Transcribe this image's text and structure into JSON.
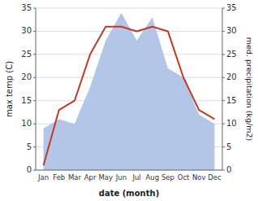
{
  "chart_data": {
    "type": "line",
    "xlabel": "date (month)",
    "ylabel": "max temp (C)",
    "y2label": "med. precipitation (kg/m2)",
    "categories": [
      "Jan",
      "Feb",
      "Mar",
      "Apr",
      "May",
      "Jun",
      "Jul",
      "Aug",
      "Sep",
      "Oct",
      "Nov",
      "Dec"
    ],
    "series": [
      {
        "type": "area",
        "color": "#b3c6e8",
        "axis": "y2",
        "values": [
          9,
          11,
          10,
          18,
          28,
          34,
          28,
          33,
          22,
          20,
          12,
          10
        ]
      },
      {
        "type": "line",
        "color": "#c0392b",
        "values": [
          1,
          13,
          15,
          25,
          31,
          31,
          30,
          31,
          30,
          20,
          13,
          11
        ]
      }
    ],
    "ylim": [
      0,
      35
    ],
    "yticks": [
      0,
      5,
      10,
      15,
      20,
      25,
      30,
      35
    ],
    "y2lim": [
      0,
      35
    ],
    "y2ticks": [
      0,
      5,
      10,
      15,
      20,
      25,
      30,
      35
    ],
    "grid": true
  }
}
